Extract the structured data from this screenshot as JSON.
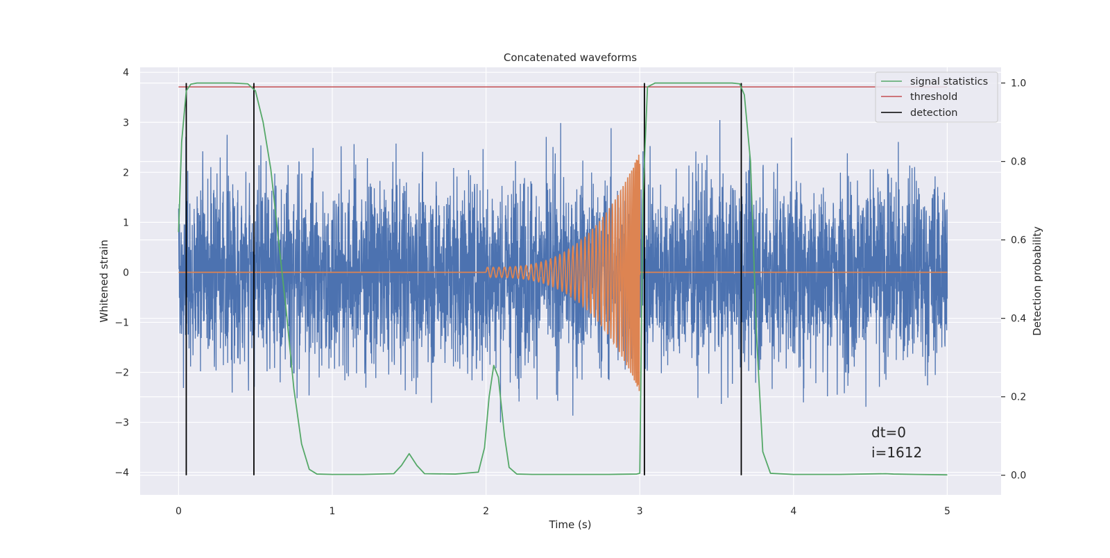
{
  "chart_data": {
    "type": "line",
    "title": "Concatenated waveforms",
    "xlabel": "Time (s)",
    "ylabel": "Whitened strain",
    "y2label": "Detection probability",
    "xlim": [
      -0.25,
      5.35
    ],
    "ylim": [
      -4.45,
      4.1
    ],
    "y2lim": [
      -0.05,
      1.04
    ],
    "x_ticks": [
      0,
      1,
      2,
      3,
      4,
      5
    ],
    "y_ticks": [
      -4,
      -3,
      -2,
      -1,
      0,
      1,
      2,
      3,
      4
    ],
    "y2_ticks": [
      0.0,
      0.2,
      0.4,
      0.6,
      0.8,
      1.0
    ],
    "x_tick_labels": [
      "0",
      "1",
      "2",
      "3",
      "4",
      "5"
    ],
    "y_tick_labels": [
      "−4",
      "−3",
      "−2",
      "−1",
      "0",
      "1",
      "2",
      "3",
      "4"
    ],
    "y2_tick_labels": [
      "0.0",
      "0.2",
      "0.4",
      "0.6",
      "0.8",
      "1.0"
    ],
    "grid": true,
    "background": "#eaeaf2",
    "legend_position": "top-right",
    "legend": [
      {
        "label": "signal statistics",
        "color": "#55a868",
        "kind": "line"
      },
      {
        "label": "threshold",
        "color": "#c44e52",
        "kind": "line"
      },
      {
        "label": "detection",
        "color": "#000000",
        "kind": "line"
      }
    ],
    "series": [
      {
        "name": "",
        "role": "noise",
        "axis": "left",
        "color": "#4c72b0",
        "x_range": [
          0,
          5
        ],
        "description": "whitened strain noise, roughly unit std, peaks to about ±3.6",
        "approx_std": 0.95
      },
      {
        "name": "",
        "role": "chirp",
        "axis": "left",
        "color": "#dd8452",
        "flat_zero_x": [
          [
            0,
            2.0
          ],
          [
            3.0,
            5.0
          ]
        ],
        "chirp_x": [
          2.0,
          3.0
        ],
        "chirp_amplitude_start": 0.1,
        "chirp_amplitude_end": 2.4
      },
      {
        "name": "signal statistics",
        "axis": "right",
        "color": "#55a868",
        "x": [
          0.0,
          0.02,
          0.05,
          0.08,
          0.12,
          0.2,
          0.35,
          0.45,
          0.5,
          0.55,
          0.6,
          0.65,
          0.7,
          0.75,
          0.8,
          0.85,
          0.9,
          1.0,
          1.2,
          1.4,
          1.45,
          1.5,
          1.55,
          1.6,
          1.8,
          1.95,
          1.99,
          2.02,
          2.05,
          2.08,
          2.12,
          2.15,
          2.2,
          2.3,
          2.5,
          2.8,
          2.98,
          3.0,
          3.02,
          3.05,
          3.1,
          3.3,
          3.6,
          3.65,
          3.68,
          3.72,
          3.76,
          3.8,
          3.85,
          4.0,
          4.3,
          4.6,
          4.65,
          4.8,
          5.0
        ],
        "values": [
          0.62,
          0.85,
          0.98,
          0.997,
          1.0,
          1.0,
          1.0,
          0.998,
          0.98,
          0.9,
          0.78,
          0.6,
          0.42,
          0.22,
          0.08,
          0.015,
          0.003,
          0.002,
          0.002,
          0.004,
          0.025,
          0.055,
          0.025,
          0.004,
          0.003,
          0.008,
          0.07,
          0.2,
          0.28,
          0.25,
          0.1,
          0.02,
          0.003,
          0.002,
          0.002,
          0.002,
          0.003,
          0.005,
          0.7,
          0.99,
          1.0,
          1.0,
          1.0,
          0.998,
          0.97,
          0.8,
          0.35,
          0.06,
          0.005,
          0.002,
          0.002,
          0.004,
          0.003,
          0.002,
          0.001
        ]
      },
      {
        "name": "threshold",
        "axis": "right",
        "color": "#c44e52",
        "x": [
          0.0,
          5.0
        ],
        "values": [
          0.99,
          0.99
        ]
      },
      {
        "name": "detection",
        "axis": "right",
        "color": "#000000",
        "vertical_lines_x": [
          0.05,
          0.49,
          3.03,
          3.66
        ],
        "y_span": [
          0.0,
          1.0
        ]
      }
    ],
    "annotations": [
      {
        "text": "dt=0"
      },
      {
        "text": "i=1612"
      }
    ]
  }
}
